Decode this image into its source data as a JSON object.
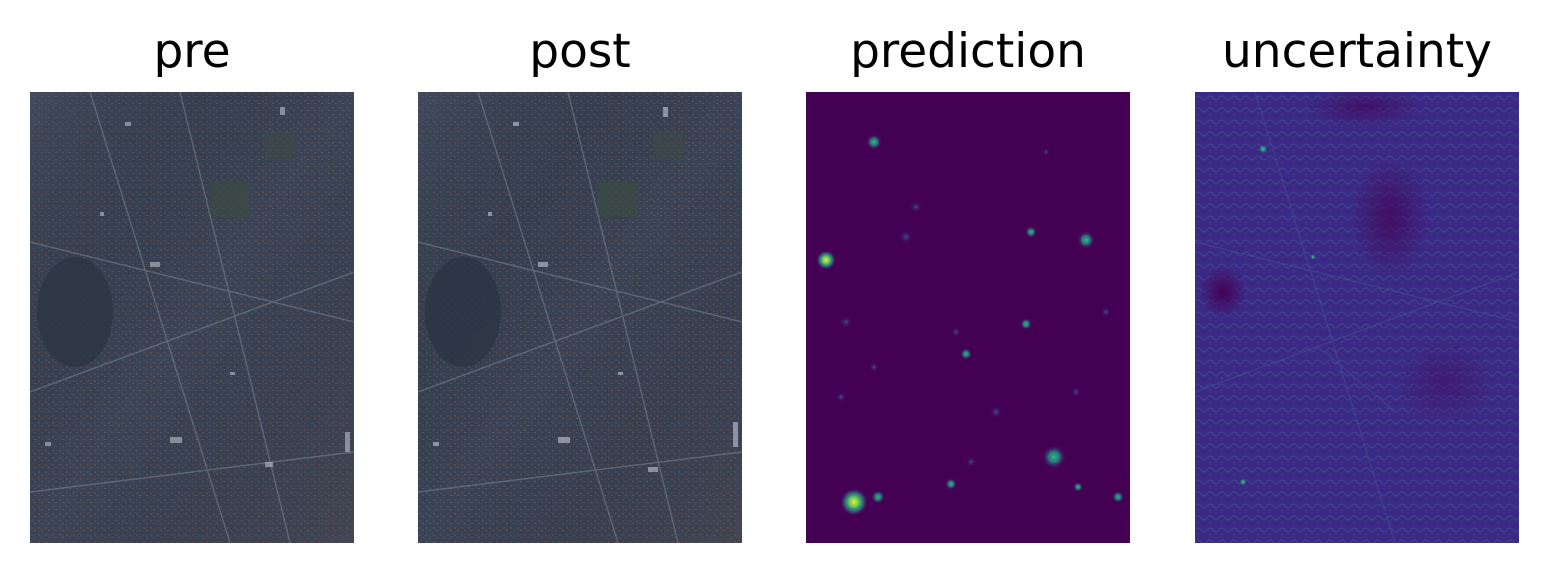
{
  "figure": {
    "panels": [
      {
        "id": "pre",
        "title": "pre",
        "kind": "satellite"
      },
      {
        "id": "post",
        "title": "post",
        "kind": "satellite"
      },
      {
        "id": "prediction",
        "title": "prediction",
        "kind": "heatmap"
      },
      {
        "id": "uncertainty",
        "title": "uncertainty",
        "kind": "heatmap"
      }
    ]
  },
  "colors": {
    "satellite_base": "#3b4557",
    "satellite_dark": "#2a3140",
    "satellite_light": "#8a93a3",
    "satellite_roof": "#6e4f49",
    "viridis_low": "#440154",
    "viridis_mid": "#21918c",
    "viridis_high": "#fde725",
    "uncertainty_base": "#3b2a85"
  }
}
